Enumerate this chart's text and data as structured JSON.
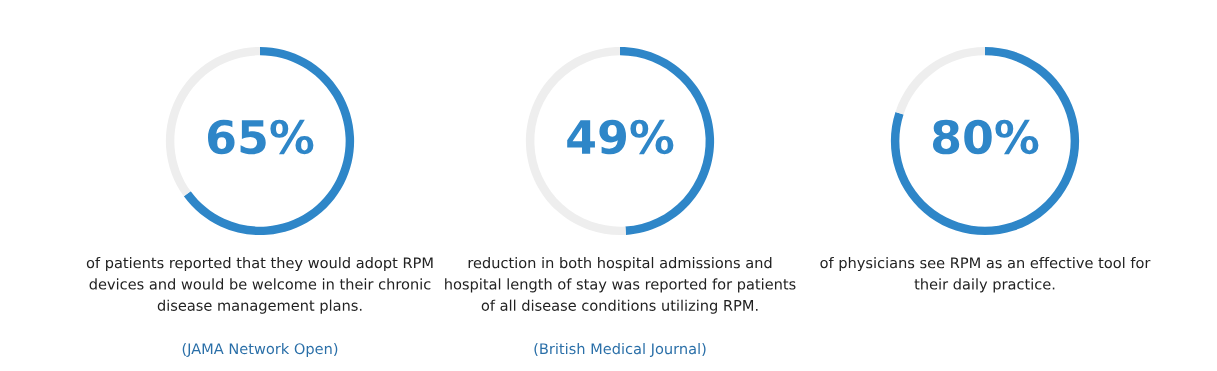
{
  "chart_data": [
    {
      "type": "donut",
      "categories": [
        null,
        null
      ],
      "values": [
        65,
        35
      ],
      "colors": [
        "#2e86c8",
        "#eeeeee"
      ],
      "value_labels": [
        "65%",
        null
      ],
      "annotations": [
        "of patients reported that they would adopt RPM\ndevices and would be welcome in their chronic\ndisease management plans.",
        "(JAMA Network Open)"
      ]
    },
    {
      "type": "donut",
      "categories": [
        null,
        null
      ],
      "values": [
        49,
        51
      ],
      "colors": [
        "#2e86c8",
        "#eeeeee"
      ],
      "value_labels": [
        "49%",
        null
      ],
      "annotations": [
        "reduction in both hospital admissions and\nhospital length of stay was reported for patients\nof all disease conditions utilizing RPM.",
        "(British Medical Journal)"
      ]
    },
    {
      "type": "donut",
      "categories": [
        null,
        null
      ],
      "values": [
        80,
        20
      ],
      "colors": [
        "#2e86c8",
        "#eeeeee"
      ],
      "value_labels": [
        "80%",
        null
      ],
      "annotations": [
        "of physicians see RPM as an effective tool for\ntheir daily practice."
      ]
    }
  ]
}
